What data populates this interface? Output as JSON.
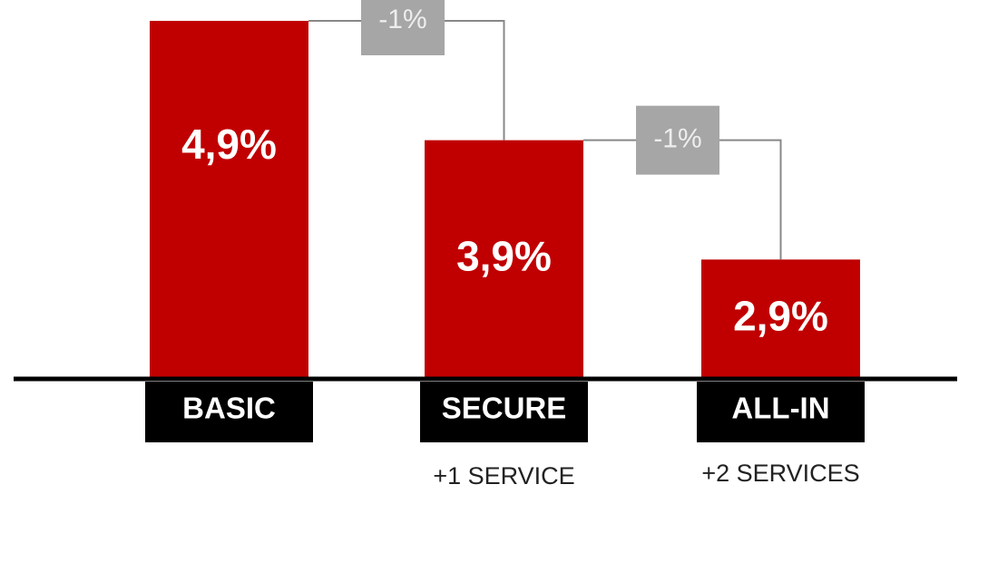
{
  "chart_data": {
    "type": "bar",
    "categories": [
      "BASIC",
      "SECURE",
      "ALL-IN"
    ],
    "category_notes": [
      null,
      "+1 SERVICE",
      "+2 SERVICES"
    ],
    "values": [
      4.9,
      3.9,
      2.9
    ],
    "value_labels": [
      "4,9%",
      "3,9%",
      "2,9%"
    ],
    "differences": [
      {
        "value": -1,
        "label": "-1%"
      },
      {
        "value": -1,
        "label": "-1%"
      }
    ],
    "color": "#c00000",
    "ylim": [
      1.9,
      4.9
    ]
  }
}
